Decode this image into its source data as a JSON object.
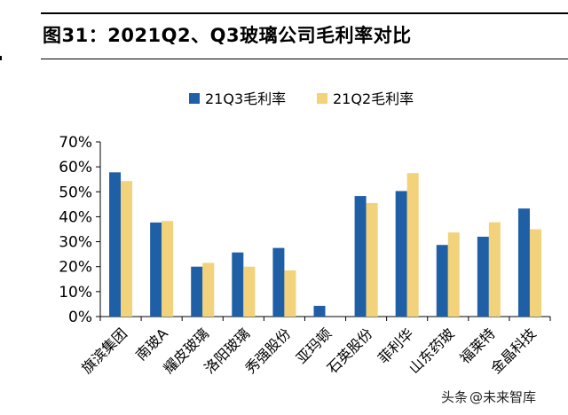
{
  "title": "图31：2021Q2、Q3玻璃公司毛利率对比",
  "watermark": {
    "source": "头条",
    "handle": "@未来智库"
  },
  "colors": {
    "q3": "#1f5fa5",
    "q2": "#f2d27a"
  },
  "chart_data": {
    "type": "bar",
    "title": "",
    "categories": [
      "旗滨集团",
      "南玻A",
      "耀皮玻璃",
      "洛阳玻璃",
      "秀强股份",
      "亚玛顿",
      "石英股份",
      "菲利华",
      "山东药玻",
      "福莱特",
      "金晶科技"
    ],
    "series": [
      {
        "name": "21Q3毛利率",
        "values": [
          57.8,
          37.7,
          20.0,
          25.7,
          27.5,
          4.3,
          48.3,
          50.3,
          28.7,
          32.0,
          43.3
        ]
      },
      {
        "name": "21Q2毛利率",
        "values": [
          54.3,
          38.3,
          21.5,
          20.0,
          18.5,
          0,
          45.5,
          57.5,
          33.7,
          37.8,
          35.0
        ]
      }
    ],
    "ylim": [
      0,
      70
    ],
    "yticks": [
      "0%",
      "10%",
      "20%",
      "30%",
      "40%",
      "50%",
      "60%",
      "70%"
    ],
    "xlabel": "",
    "ylabel": "",
    "legend": "top-right",
    "grid": false
  }
}
